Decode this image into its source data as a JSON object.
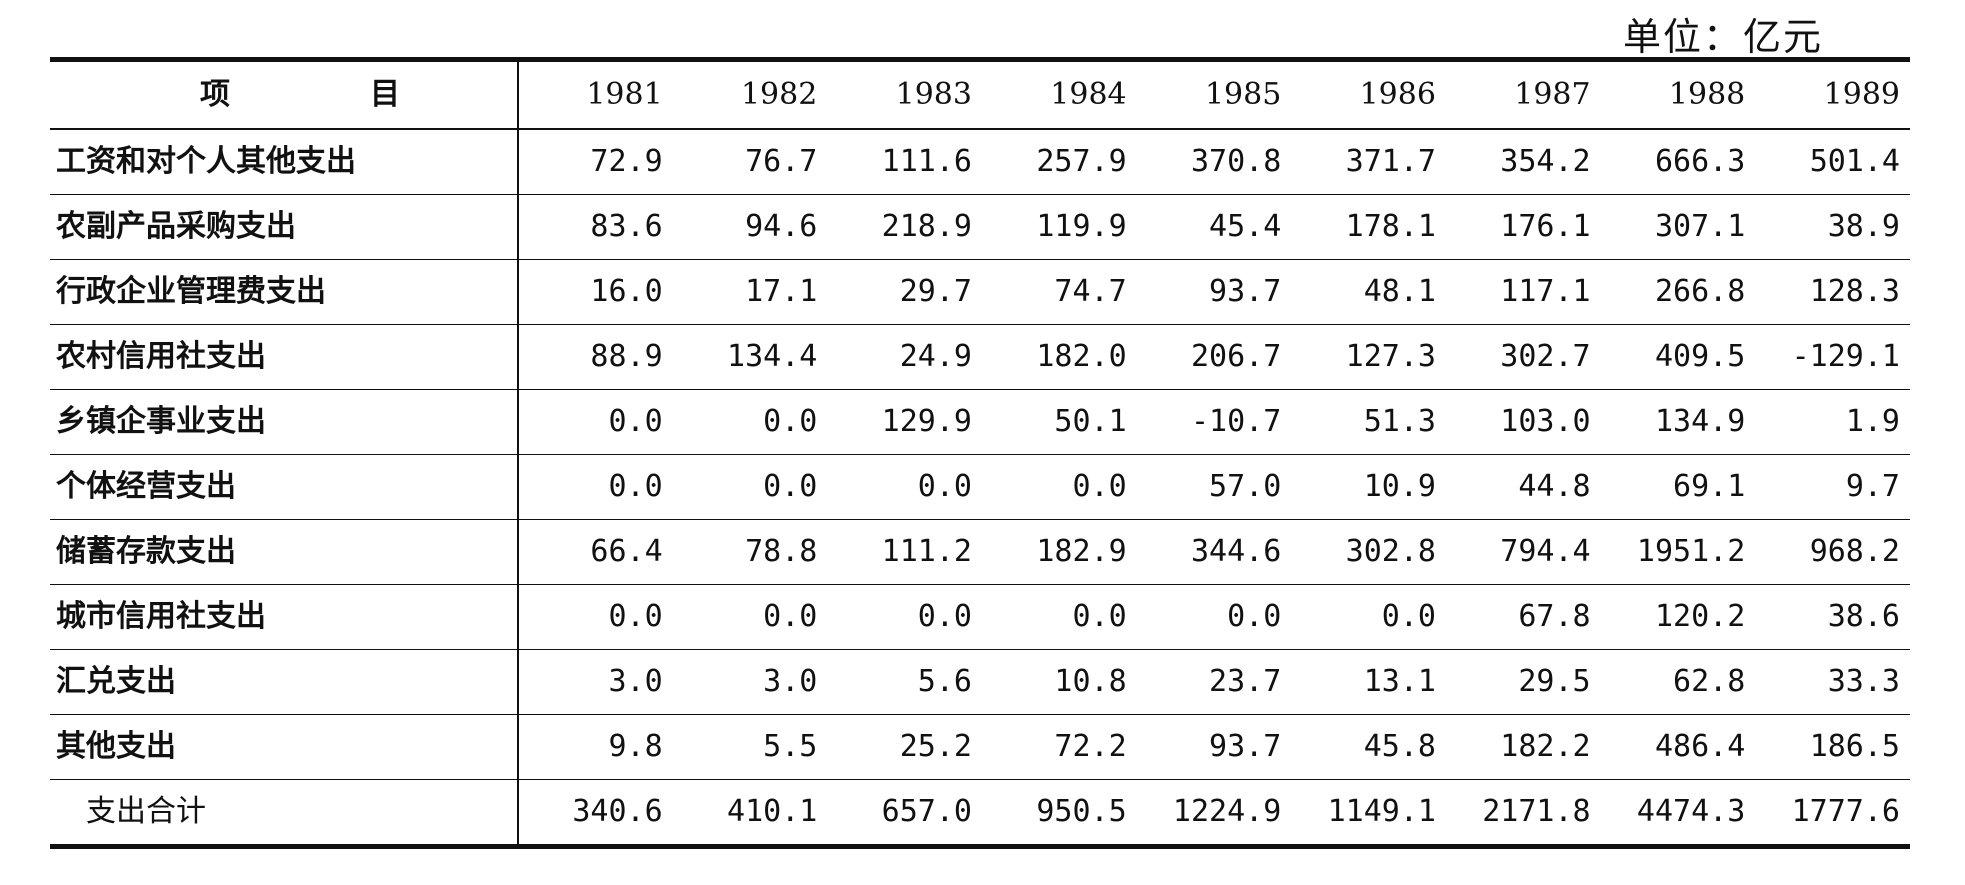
{
  "unit_label": "单位：亿元",
  "header": {
    "label_part1": "项",
    "label_part2": "目",
    "years": [
      "1981",
      "1982",
      "1983",
      "1984",
      "1985",
      "1986",
      "1987",
      "1988",
      "1989"
    ]
  },
  "rows": [
    {
      "label": "工资和对个人其他支出",
      "values": [
        "72.9",
        "76.7",
        "111.6",
        "257.9",
        "370.8",
        "371.7",
        "354.2",
        "666.3",
        "501.4"
      ]
    },
    {
      "label": "农副产品采购支出",
      "values": [
        "83.6",
        "94.6",
        "218.9",
        "119.9",
        "45.4",
        "178.1",
        "176.1",
        "307.1",
        "38.9"
      ]
    },
    {
      "label": "行政企业管理费支出",
      "values": [
        "16.0",
        "17.1",
        "29.7",
        "74.7",
        "93.7",
        "48.1",
        "117.1",
        "266.8",
        "128.3"
      ]
    },
    {
      "label": "农村信用社支出",
      "values": [
        "88.9",
        "134.4",
        "24.9",
        "182.0",
        "206.7",
        "127.3",
        "302.7",
        "409.5",
        "-129.1"
      ]
    },
    {
      "label": "乡镇企事业支出",
      "values": [
        "0.0",
        "0.0",
        "129.9",
        "50.1",
        "-10.7",
        "51.3",
        "103.0",
        "134.9",
        "1.9"
      ]
    },
    {
      "label": "个体经营支出",
      "values": [
        "0.0",
        "0.0",
        "0.0",
        "0.0",
        "57.0",
        "10.9",
        "44.8",
        "69.1",
        "9.7"
      ]
    },
    {
      "label": "储蓄存款支出",
      "values": [
        "66.4",
        "78.8",
        "111.2",
        "182.9",
        "344.6",
        "302.8",
        "794.4",
        "1951.2",
        "968.2"
      ]
    },
    {
      "label": "城市信用社支出",
      "values": [
        "0.0",
        "0.0",
        "0.0",
        "0.0",
        "0.0",
        "0.0",
        "67.8",
        "120.2",
        "38.6"
      ]
    },
    {
      "label": "汇兑支出",
      "values": [
        "3.0",
        "3.0",
        "5.6",
        "10.8",
        "23.7",
        "13.1",
        "29.5",
        "62.8",
        "33.3"
      ]
    },
    {
      "label": "其他支出",
      "values": [
        "9.8",
        "5.5",
        "25.2",
        "72.2",
        "93.7",
        "45.8",
        "182.2",
        "486.4",
        "186.5"
      ]
    }
  ],
  "total": {
    "label": "支出合计",
    "values": [
      "340.6",
      "410.1",
      "657.0",
      "950.5",
      "1224.9",
      "1149.1",
      "2171.8",
      "4474.3",
      "1777.6"
    ]
  }
}
